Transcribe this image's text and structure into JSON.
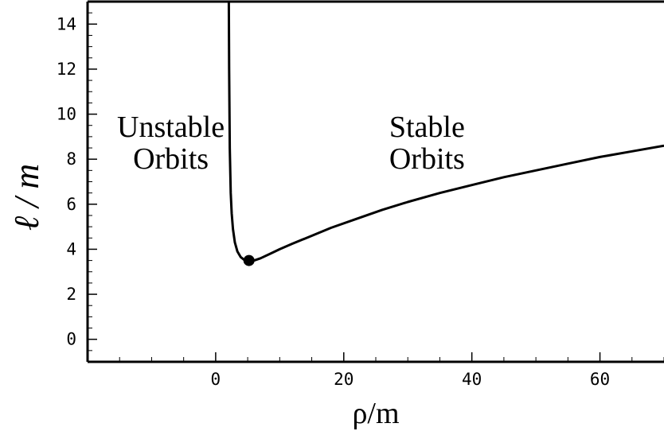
{
  "chart_data": {
    "type": "line",
    "title": "",
    "xlabel": "ρ/m",
    "ylabel": "ℓ / m",
    "xlim": [
      -20,
      70
    ],
    "ylim": [
      -1,
      15
    ],
    "xticks": [
      0,
      20,
      40,
      60
    ],
    "yticks": [
      0,
      2,
      4,
      6,
      8,
      10,
      12,
      14
    ],
    "grid": false,
    "legend": "none",
    "annotations": [
      {
        "lines": [
          "Unstable",
          "Orbits"
        ],
        "x": -7,
        "y": 9
      },
      {
        "lines": [
          "Stable",
          "Orbits"
        ],
        "x": 33,
        "y": 9
      }
    ],
    "marker": {
      "x": 5.2,
      "y": 3.5
    },
    "series": [
      {
        "x": [
          2.05,
          2.1,
          2.2,
          2.35,
          2.5,
          2.7,
          3.0,
          3.4,
          3.9,
          4.5,
          5.2,
          6.0,
          7.0,
          8.5,
          10,
          12,
          15,
          18,
          22,
          26,
          30,
          35,
          40,
          45,
          50,
          55,
          60,
          65,
          70
        ],
        "y": [
          15,
          12,
          8.5,
          6.5,
          5.6,
          4.9,
          4.3,
          3.9,
          3.65,
          3.52,
          3.47,
          3.5,
          3.6,
          3.8,
          4.0,
          4.25,
          4.6,
          4.95,
          5.35,
          5.75,
          6.1,
          6.5,
          6.85,
          7.2,
          7.5,
          7.8,
          8.1,
          8.35,
          8.6
        ]
      }
    ]
  }
}
